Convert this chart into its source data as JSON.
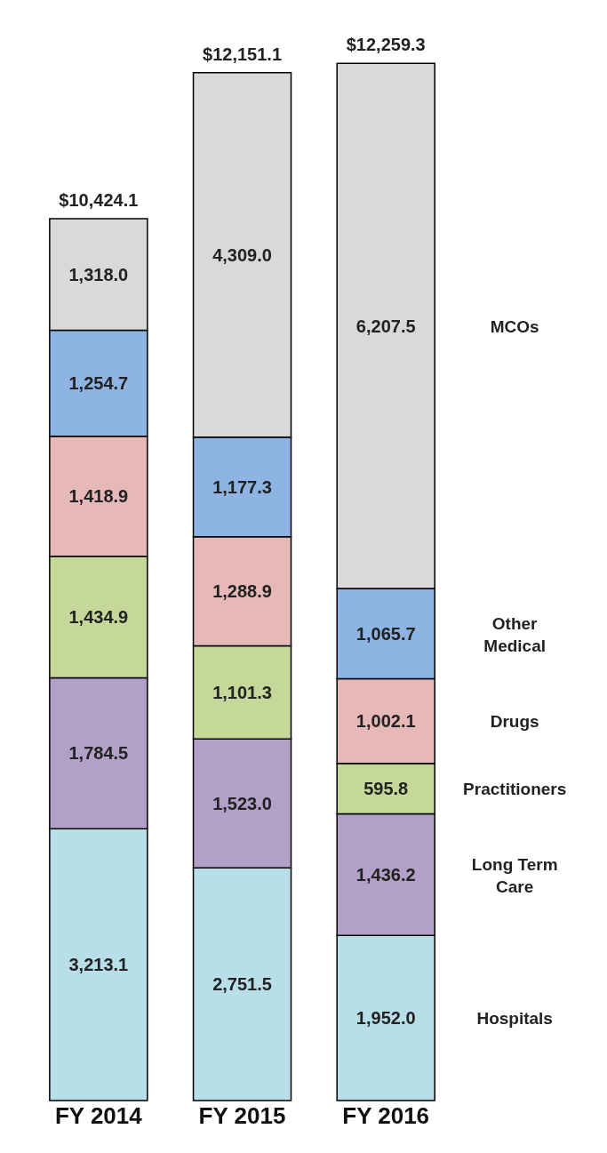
{
  "chart_data": {
    "type": "bar",
    "stacked": true,
    "categories": [
      "FY 2014",
      "FY 2015",
      "FY 2016"
    ],
    "series": [
      {
        "name": "Hospitals",
        "color": "#b8dfe8",
        "values": [
          3213.1,
          2751.5,
          1952.0
        ],
        "value_labels": [
          "3,213.1",
          "2,751.5",
          "1,952.0"
        ]
      },
      {
        "name": "Long Term Care",
        "color": "#b3a0c8",
        "values": [
          1784.5,
          1523.0,
          1436.2
        ],
        "value_labels": [
          "1,784.5",
          "1,523.0",
          "1,436.2"
        ]
      },
      {
        "name": "Practitioners",
        "color": "#c5d89a",
        "values": [
          1434.9,
          1101.3,
          595.8
        ],
        "value_labels": [
          "1,434.9",
          "1,101.3",
          "595.8"
        ]
      },
      {
        "name": "Drugs",
        "color": "#e6b8b8",
        "values": [
          1418.9,
          1288.9,
          1002.1
        ],
        "value_labels": [
          "1,418.9",
          "1,288.9",
          "1,002.1"
        ]
      },
      {
        "name": "Other Medical",
        "color": "#8db4e2",
        "values": [
          1254.7,
          1177.3,
          1065.7
        ],
        "value_labels": [
          "1,254.7",
          "1,177.3",
          "1,065.7"
        ]
      },
      {
        "name": "MCOs",
        "color": "#d9d9d9",
        "values": [
          1318.0,
          4309.0,
          6207.5
        ],
        "value_labels": [
          "1,318.0",
          "4,309.0",
          "6,207.5"
        ]
      }
    ],
    "totals": [
      "$10,424.1",
      "$12,151.1",
      "$12,259.3"
    ]
  }
}
